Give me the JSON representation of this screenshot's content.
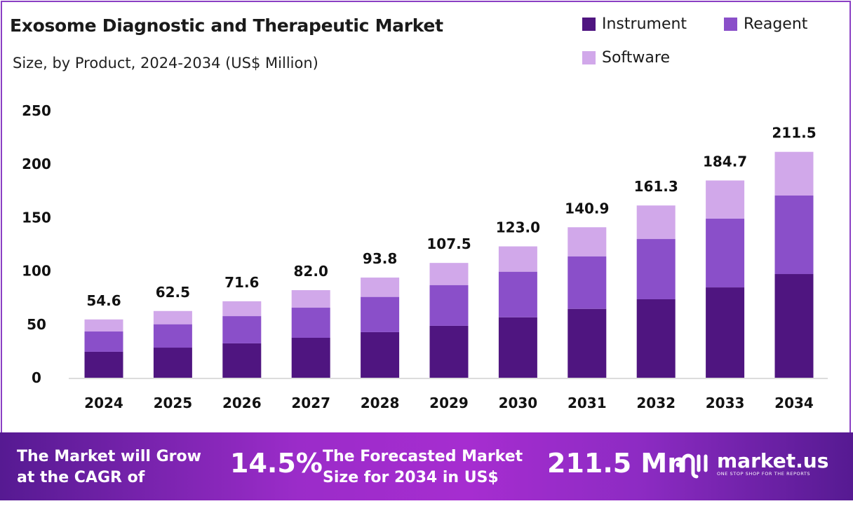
{
  "chart_data": {
    "type": "bar",
    "stacked": true,
    "title": "Exosome Diagnostic and Therapeutic Market",
    "subtitle": "Size, by Product, 2024-2034 (US$ Million)",
    "categories": [
      "2024",
      "2025",
      "2026",
      "2027",
      "2028",
      "2029",
      "2030",
      "2031",
      "2032",
      "2033",
      "2034"
    ],
    "series": [
      {
        "name": "Instrument",
        "color": "#4f1580",
        "values": [
          24.3,
          28.2,
          32.2,
          37.4,
          42.7,
          48.6,
          56.6,
          64.5,
          73.5,
          84.6,
          97.1
        ]
      },
      {
        "name": "Reagent",
        "color": "#8a4fc9",
        "values": [
          19.0,
          21.9,
          25.5,
          28.2,
          33.0,
          38.2,
          42.7,
          49.2,
          56.4,
          64.4,
          73.5
        ]
      },
      {
        "name": "Software",
        "color": "#d1a8ea",
        "values": [
          11.3,
          12.4,
          13.9,
          16.4,
          18.1,
          20.7,
          23.7,
          27.2,
          31.4,
          35.7,
          40.9
        ]
      }
    ],
    "totals": [
      "54.6",
      "62.5",
      "71.6",
      "82.0",
      "93.8",
      "107.5",
      "123.0",
      "140.9",
      "161.3",
      "184.7",
      "211.5"
    ],
    "yticks": [
      "0",
      "50",
      "100",
      "150",
      "200",
      "250"
    ],
    "ylim": [
      0,
      250
    ],
    "grid": false,
    "legend_position": "top-right"
  },
  "banner": {
    "cagr_text_line1": "The Market will Grow",
    "cagr_text_line2": "at the CAGR of",
    "cagr_value": "14.5%",
    "forecast_text_line1": "The Forecasted Market",
    "forecast_text_line2": "Size for 2034 in US$",
    "forecast_value": "211.5 Mn",
    "logo_name": "market.us",
    "logo_tagline": "ONE STOP SHOP FOR THE REPORTS"
  }
}
